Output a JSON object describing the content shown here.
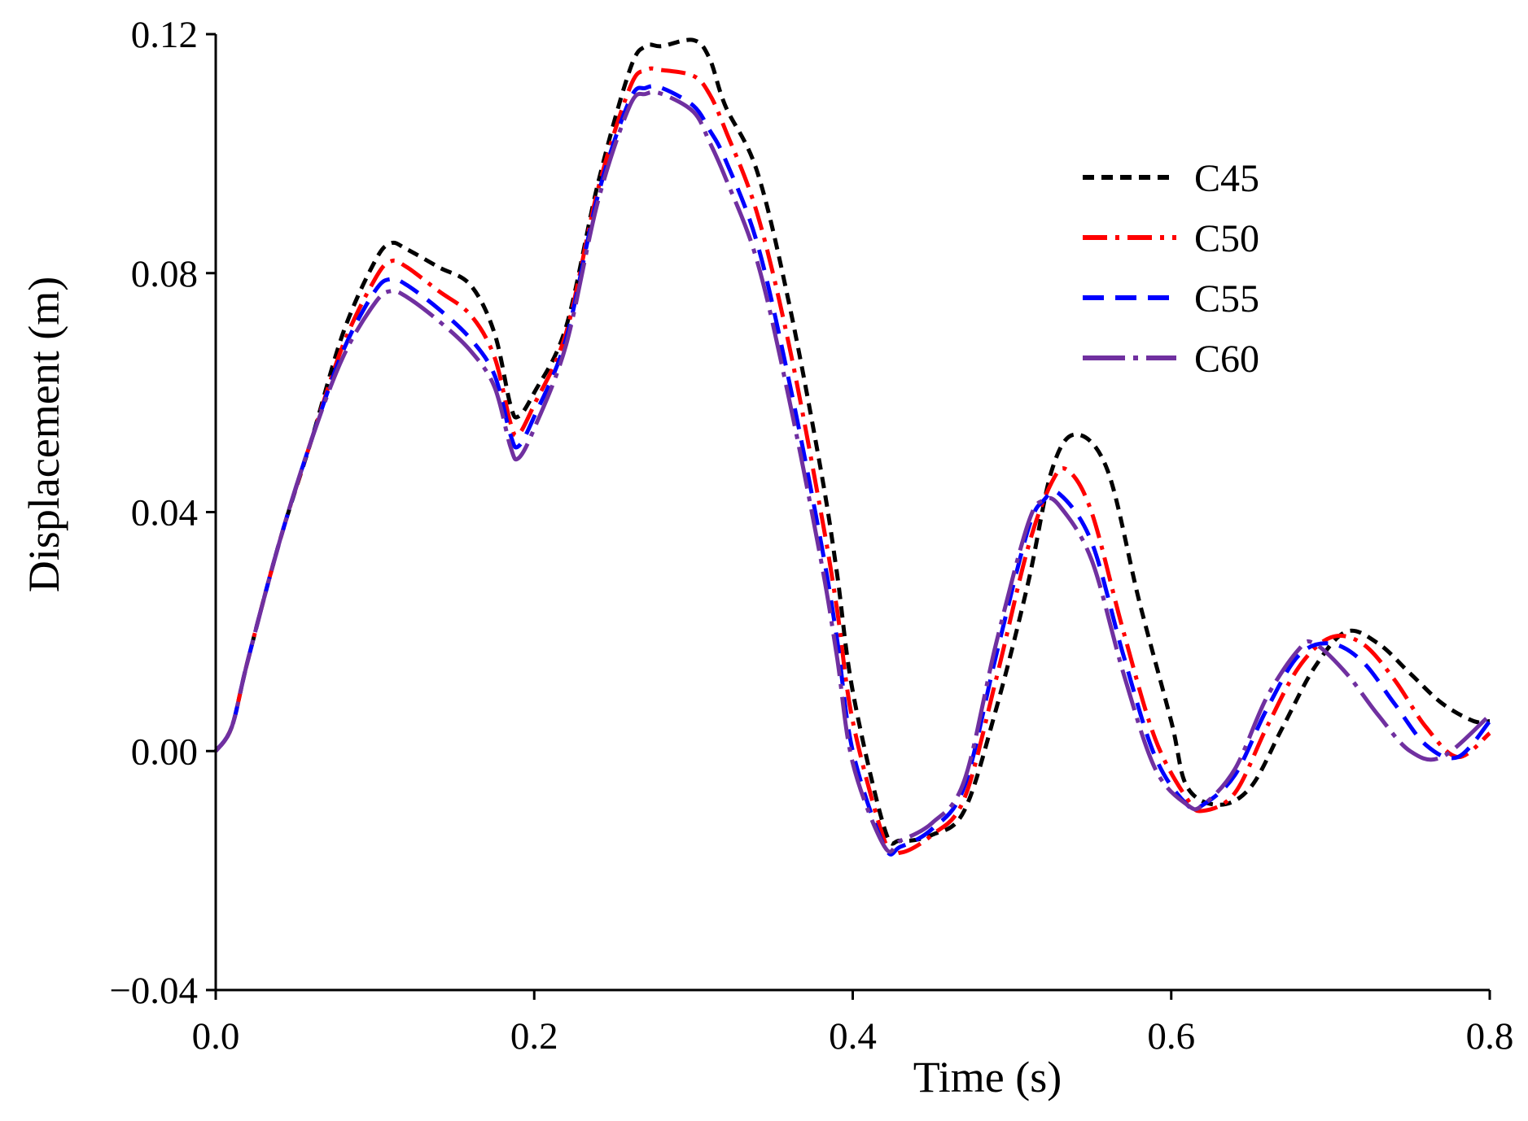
{
  "chart_data": {
    "type": "line",
    "title": "",
    "xlabel": "Time (s)",
    "ylabel": "Displacement (m)",
    "xlim": [
      0.0,
      0.8
    ],
    "ylim": [
      -0.04,
      0.12
    ],
    "xticks": [
      0.0,
      0.2,
      0.4,
      0.6,
      0.8
    ],
    "xtick_labels": [
      "0.0",
      "0.2",
      "0.4",
      "0.6",
      "0.8"
    ],
    "yticks": [
      -0.04,
      0.0,
      0.04,
      0.08,
      0.12
    ],
    "ytick_labels": [
      "−0.04",
      "0.00",
      "0.04",
      "0.08",
      "0.12"
    ],
    "grid": false,
    "legend_position": "top-right",
    "series": [
      {
        "name": "C45",
        "color": "#000000",
        "style": "short-dash",
        "x": [
          0.0,
          0.01,
          0.02,
          0.04,
          0.06,
          0.08,
          0.1,
          0.11,
          0.12,
          0.14,
          0.16,
          0.175,
          0.185,
          0.19,
          0.2,
          0.22,
          0.24,
          0.26,
          0.27,
          0.28,
          0.3,
          0.31,
          0.32,
          0.34,
          0.36,
          0.38,
          0.39,
          0.4,
          0.42,
          0.43,
          0.45,
          0.47,
          0.49,
          0.51,
          0.525,
          0.54,
          0.56,
          0.58,
          0.6,
          0.61,
          0.63,
          0.65,
          0.67,
          0.69,
          0.71,
          0.73,
          0.75,
          0.77,
          0.79,
          0.8
        ],
        "y": [
          0.0,
          0.004,
          0.015,
          0.035,
          0.052,
          0.07,
          0.082,
          0.085,
          0.084,
          0.081,
          0.078,
          0.07,
          0.058,
          0.056,
          0.06,
          0.071,
          0.095,
          0.114,
          0.118,
          0.118,
          0.119,
          0.116,
          0.108,
          0.097,
          0.075,
          0.047,
          0.03,
          0.01,
          -0.013,
          -0.015,
          -0.014,
          -0.01,
          0.007,
          0.028,
          0.047,
          0.053,
          0.047,
          0.025,
          0.005,
          -0.006,
          -0.009,
          -0.006,
          0.004,
          0.014,
          0.02,
          0.018,
          0.013,
          0.008,
          0.005,
          0.005
        ]
      },
      {
        "name": "C50",
        "color": "#ff0000",
        "style": "dash-dot",
        "x": [
          0.0,
          0.01,
          0.02,
          0.04,
          0.06,
          0.08,
          0.1,
          0.11,
          0.12,
          0.14,
          0.16,
          0.175,
          0.185,
          0.19,
          0.2,
          0.22,
          0.24,
          0.26,
          0.27,
          0.28,
          0.3,
          0.31,
          0.32,
          0.34,
          0.36,
          0.38,
          0.39,
          0.4,
          0.42,
          0.43,
          0.45,
          0.47,
          0.49,
          0.51,
          0.525,
          0.535,
          0.55,
          0.57,
          0.59,
          0.61,
          0.62,
          0.64,
          0.66,
          0.68,
          0.7,
          0.72,
          0.74,
          0.76,
          0.78,
          0.8
        ],
        "y": [
          0.0,
          0.004,
          0.015,
          0.035,
          0.052,
          0.068,
          0.079,
          0.082,
          0.081,
          0.077,
          0.073,
          0.066,
          0.055,
          0.053,
          0.058,
          0.07,
          0.094,
          0.111,
          0.114,
          0.114,
          0.113,
          0.11,
          0.104,
          0.09,
          0.068,
          0.04,
          0.024,
          0.005,
          -0.015,
          -0.017,
          -0.014,
          -0.008,
          0.012,
          0.034,
          0.045,
          0.047,
          0.04,
          0.02,
          0.002,
          -0.008,
          -0.01,
          -0.007,
          0.004,
          0.014,
          0.019,
          0.018,
          0.012,
          0.004,
          -0.001,
          0.003
        ]
      },
      {
        "name": "C55",
        "color": "#0000ff",
        "style": "long-dash",
        "x": [
          0.0,
          0.01,
          0.02,
          0.04,
          0.06,
          0.08,
          0.1,
          0.11,
          0.12,
          0.14,
          0.16,
          0.175,
          0.185,
          0.19,
          0.2,
          0.22,
          0.24,
          0.26,
          0.27,
          0.28,
          0.3,
          0.31,
          0.32,
          0.34,
          0.36,
          0.38,
          0.39,
          0.4,
          0.42,
          0.43,
          0.45,
          0.47,
          0.49,
          0.51,
          0.52,
          0.53,
          0.55,
          0.57,
          0.59,
          0.61,
          0.62,
          0.64,
          0.66,
          0.68,
          0.7,
          0.72,
          0.74,
          0.76,
          0.78,
          0.8
        ],
        "y": [
          0.0,
          0.004,
          0.015,
          0.035,
          0.052,
          0.067,
          0.077,
          0.079,
          0.078,
          0.074,
          0.069,
          0.063,
          0.053,
          0.051,
          0.056,
          0.069,
          0.093,
          0.109,
          0.111,
          0.111,
          0.108,
          0.104,
          0.099,
          0.085,
          0.062,
          0.035,
          0.019,
          0.0,
          -0.016,
          -0.016,
          -0.013,
          -0.006,
          0.016,
          0.037,
          0.042,
          0.043,
          0.035,
          0.016,
          -0.001,
          -0.009,
          -0.009,
          -0.004,
          0.007,
          0.016,
          0.018,
          0.015,
          0.008,
          0.001,
          -0.001,
          0.005
        ]
      },
      {
        "name": "C60",
        "color": "#7030a0",
        "style": "long-dash-dot",
        "x": [
          0.0,
          0.01,
          0.02,
          0.04,
          0.06,
          0.08,
          0.1,
          0.11,
          0.12,
          0.14,
          0.16,
          0.175,
          0.185,
          0.19,
          0.2,
          0.22,
          0.24,
          0.26,
          0.27,
          0.28,
          0.3,
          0.31,
          0.32,
          0.34,
          0.36,
          0.38,
          0.39,
          0.4,
          0.42,
          0.43,
          0.45,
          0.47,
          0.49,
          0.51,
          0.52,
          0.53,
          0.55,
          0.57,
          0.59,
          0.61,
          0.62,
          0.64,
          0.66,
          0.68,
          0.69,
          0.71,
          0.73,
          0.75,
          0.77,
          0.8
        ],
        "y": [
          0.0,
          0.004,
          0.015,
          0.035,
          0.052,
          0.066,
          0.075,
          0.077,
          0.076,
          0.072,
          0.067,
          0.061,
          0.051,
          0.049,
          0.054,
          0.068,
          0.092,
          0.108,
          0.11,
          0.11,
          0.107,
          0.102,
          0.096,
          0.082,
          0.059,
          0.032,
          0.016,
          -0.002,
          -0.016,
          -0.015,
          -0.012,
          -0.005,
          0.018,
          0.038,
          0.042,
          0.041,
          0.032,
          0.013,
          -0.003,
          -0.009,
          -0.009,
          -0.003,
          0.009,
          0.017,
          0.018,
          0.013,
          0.006,
          0.0,
          -0.001,
          0.006
        ]
      }
    ]
  }
}
